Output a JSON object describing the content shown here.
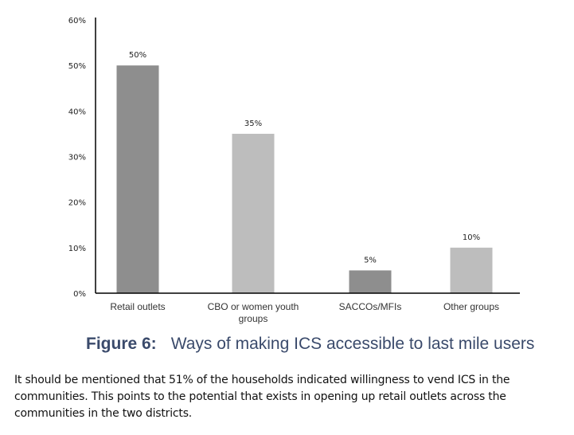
{
  "chart_data": {
    "type": "bar",
    "title": "",
    "xlabel": "",
    "ylabel": "",
    "categories": [
      "Retail outlets",
      "CBO or women youth groups",
      "SACCOs/MFIs",
      "Other groups"
    ],
    "category_lines": [
      [
        "Retail outlets"
      ],
      [
        "CBO or women youth",
        "groups"
      ],
      [
        "SACCOs/MFIs"
      ],
      [
        "Other groups"
      ]
    ],
    "values": [
      50,
      35,
      5,
      10
    ],
    "data_labels": [
      "50%",
      "35%",
      "5%",
      "10%"
    ],
    "bar_colors": [
      "#8e8e8e",
      "#bdbdbd",
      "#8e8e8e",
      "#bdbdbd"
    ],
    "ylim": [
      0,
      60
    ],
    "yticks": [
      0,
      10,
      20,
      30,
      40,
      50,
      60
    ],
    "ytick_labels": [
      "0%",
      "10%",
      "20%",
      "30%",
      "40%",
      "50%",
      "60%"
    ],
    "grid": false,
    "legend": "none"
  },
  "caption": {
    "number": "Figure 6:",
    "text": "Ways of making ICS accessible to last mile users"
  },
  "paragraph": "It should be mentioned that 51% of the households indicated willingness to vend ICS in the communities. This points to the potential that exists in opening up retail outlets across the communities in the two districts."
}
